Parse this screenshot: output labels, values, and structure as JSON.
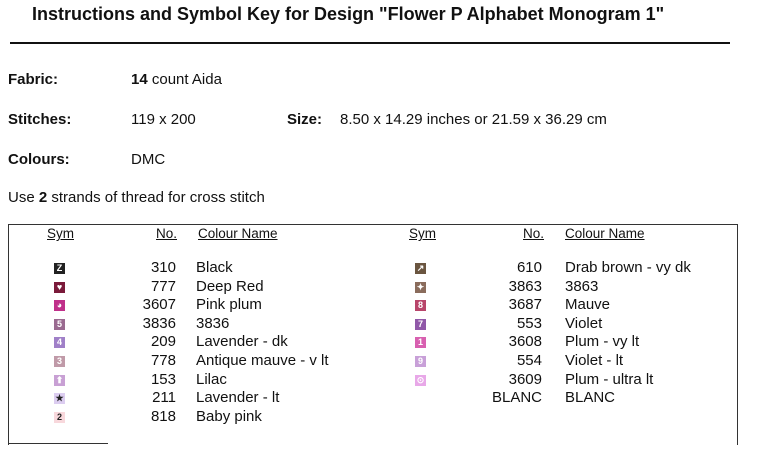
{
  "title": "Instructions and Symbol Key for Design \"Flower P Alphabet Monogram 1\"",
  "fabric": {
    "label": "Fabric:",
    "count": "14",
    "rest": "count Aida"
  },
  "stitches": {
    "label": "Stitches:",
    "value": "119 x 200"
  },
  "size": {
    "label": "Size:",
    "value": "8.50 x 14.29 inches or 21.59 x 36.29 cm"
  },
  "colours": {
    "label": "Colours:",
    "value": "DMC"
  },
  "strands": {
    "pre": "Use",
    "count": "2",
    "post": "strands of thread for cross stitch"
  },
  "headers": {
    "sym": "Sym",
    "no": "No.",
    "name": "Colour Name"
  },
  "left": [
    {
      "sym": "Z",
      "color": "#222222",
      "no": "310",
      "name": "Black"
    },
    {
      "sym": "♥",
      "color": "#7a1a3a",
      "no": "777",
      "name": "Deep Red"
    },
    {
      "sym": "◕",
      "color": "#c0308a",
      "no": "3607",
      "name": "Pink plum"
    },
    {
      "sym": "5",
      "color": "#9a6a90",
      "no": "3836",
      "name": "3836"
    },
    {
      "sym": "4",
      "color": "#a080c8",
      "no": "209",
      "name": "Lavender -  dk"
    },
    {
      "sym": "3",
      "color": "#c09aa8",
      "no": "778",
      "name": "Antique mauve -  v lt"
    },
    {
      "sym": "⬆",
      "color": "#c8a0d4",
      "no": "153",
      "name": "Lilac"
    },
    {
      "sym": "★",
      "color": "#dccdf0",
      "no": "211",
      "name": "Lavender -  lt"
    },
    {
      "sym": "2",
      "color": "#f8d8dc",
      "no": "818",
      "name": "Baby pink"
    }
  ],
  "right": [
    {
      "sym": "↗",
      "color": "#6a5540",
      "no": "610",
      "name": "Drab brown -  vy dk"
    },
    {
      "sym": "✦",
      "color": "#8a6c5c",
      "no": "3863",
      "name": "3863"
    },
    {
      "sym": "8",
      "color": "#b8456a",
      "no": "3687",
      "name": "Mauve"
    },
    {
      "sym": "7",
      "color": "#9058a8",
      "no": "553",
      "name": "Violet"
    },
    {
      "sym": "1",
      "color": "#d860b0",
      "no": "3608",
      "name": "Plum -  vy lt"
    },
    {
      "sym": "9",
      "color": "#c8a0d8",
      "no": "554",
      "name": "Violet -  lt"
    },
    {
      "sym": "⊙",
      "color": "#e8a8e8",
      "no": "3609",
      "name": "Plum -  ultra lt"
    },
    {
      "sym": "",
      "color": "",
      "no": "BLANC",
      "name": "BLANC"
    }
  ]
}
